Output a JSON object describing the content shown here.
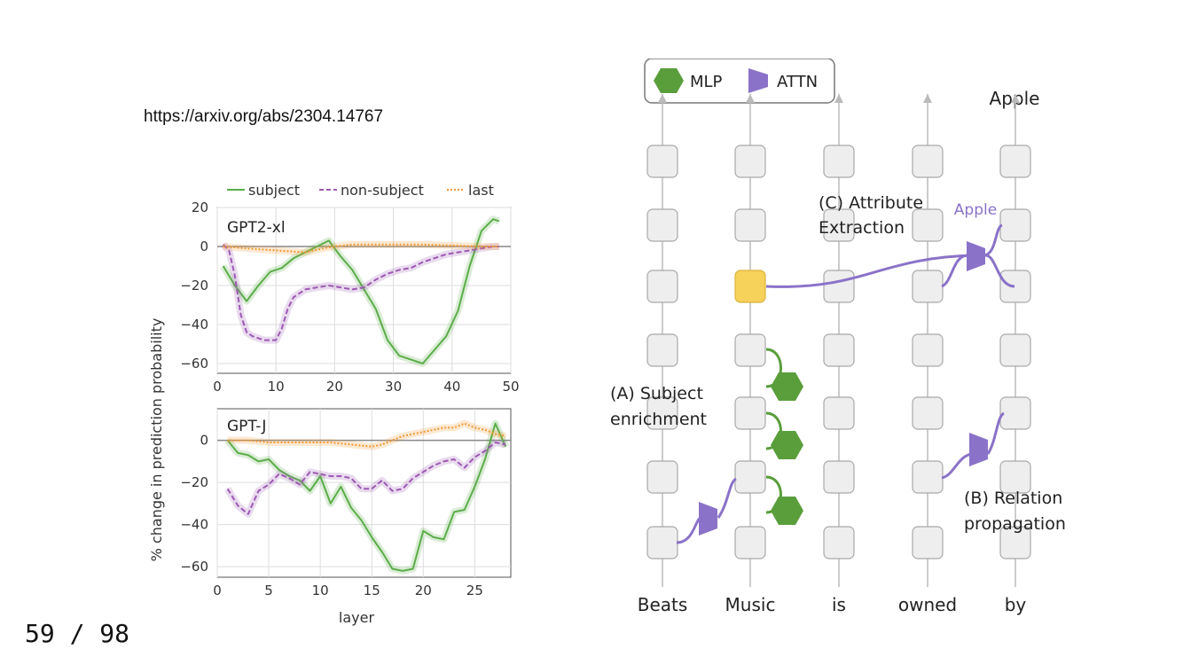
{
  "slide": {
    "link": "https://arxiv.org/abs/2304.14767",
    "page": "59 / 98"
  },
  "chart_data": [
    {
      "type": "line",
      "title": "GPT2-xl",
      "xlim": [
        0,
        50
      ],
      "ylim": [
        -65,
        20
      ],
      "xticks": [
        0,
        10,
        20,
        30,
        40,
        50
      ],
      "yticks": [
        20,
        0,
        -20,
        -40,
        -60
      ],
      "ylabel": "% change in prediction probability",
      "grid": true,
      "legend": "top",
      "series": [
        {
          "name": "subject",
          "color": "#5cad4a",
          "style": "solid",
          "x": [
            1,
            3,
            5,
            7,
            9,
            11,
            13,
            15,
            17,
            19,
            21,
            23,
            25,
            27,
            29,
            31,
            33,
            35,
            37,
            39,
            41,
            43,
            45,
            47,
            48
          ],
          "y": [
            -10,
            -20,
            -28,
            -20,
            -13,
            -11,
            -6,
            -3,
            0,
            3,
            -5,
            -12,
            -22,
            -32,
            -48,
            -56,
            -58,
            -60,
            -53,
            -46,
            -33,
            -10,
            8,
            14,
            13
          ]
        },
        {
          "name": "non-subject",
          "color": "#9d59b3",
          "style": "dashed",
          "x": [
            1,
            2,
            3,
            4,
            5,
            6,
            8,
            10,
            11,
            12,
            13,
            15,
            17,
            19,
            21,
            23,
            25,
            27,
            29,
            31,
            33,
            35,
            37,
            39,
            41,
            43,
            45,
            47,
            48
          ],
          "y": [
            1,
            -2,
            -15,
            -35,
            -44,
            -46,
            -48,
            -48,
            -42,
            -32,
            -26,
            -22,
            -21,
            -20,
            -21,
            -22,
            -21,
            -17,
            -14,
            -12,
            -11,
            -8,
            -6,
            -4,
            -3,
            -2,
            -1,
            0,
            0
          ]
        },
        {
          "name": "last",
          "color": "#f29935",
          "style": "dotted",
          "x": [
            1,
            5,
            10,
            15,
            18,
            20,
            23,
            26,
            30,
            35,
            40,
            45,
            48
          ],
          "y": [
            0,
            -1,
            -2,
            -3,
            -1,
            0,
            1,
            1,
            1,
            1,
            0.5,
            0,
            0
          ]
        }
      ]
    },
    {
      "type": "line",
      "title": "GPT-J",
      "xlabel": "layer",
      "xlim": [
        0,
        28.5
      ],
      "ylim": [
        -65,
        15
      ],
      "xticks": [
        0,
        5,
        10,
        15,
        20,
        25
      ],
      "yticks": [
        0,
        -20,
        -40,
        -60
      ],
      "grid": true,
      "series": [
        {
          "name": "subject",
          "color": "#5cad4a",
          "style": "solid",
          "x": [
            1,
            2,
            3,
            4,
            5,
            6,
            7,
            8,
            9,
            10,
            11,
            12,
            13,
            14,
            15,
            16,
            17,
            18,
            19,
            20,
            21,
            22,
            23,
            24,
            25,
            26,
            27,
            28
          ],
          "y": [
            0,
            -6,
            -7,
            -10,
            -9,
            -14,
            -17,
            -19,
            -24,
            -17,
            -30,
            -22,
            -32,
            -38,
            -46,
            -53,
            -61,
            -62,
            -61,
            -43,
            -46,
            -47,
            -34,
            -33,
            -22,
            -9,
            8,
            -3
          ]
        },
        {
          "name": "non-subject",
          "color": "#9d59b3",
          "style": "dashed",
          "x": [
            1,
            2,
            3,
            4,
            5,
            6,
            7,
            8,
            9,
            10,
            11,
            12,
            13,
            14,
            15,
            16,
            17,
            18,
            19,
            20,
            21,
            22,
            23,
            24,
            25,
            26,
            27,
            28
          ],
          "y": [
            -23,
            -31,
            -35,
            -24,
            -21,
            -16,
            -18,
            -21,
            -15,
            -16,
            -17,
            -17,
            -18,
            -23,
            -23,
            -19,
            -24,
            -23,
            -18,
            -15,
            -12,
            -10,
            -9,
            -13,
            -8,
            -5,
            -1,
            -2
          ]
        },
        {
          "name": "last",
          "color": "#f29935",
          "style": "dotted",
          "x": [
            1,
            3,
            5,
            7,
            9,
            11,
            13,
            15,
            16,
            18,
            19,
            20,
            21,
            22,
            23,
            24,
            25,
            26,
            27,
            28
          ],
          "y": [
            0,
            0,
            -1,
            -1,
            -1,
            -1,
            -2,
            -3,
            -2,
            2,
            3,
            4,
            5,
            6,
            6,
            8,
            6,
            5,
            3,
            2
          ]
        }
      ]
    }
  ],
  "diagram": {
    "legend": {
      "mlp": "MLP",
      "attn": "ATTN"
    },
    "output_label": "Apple",
    "apple_label": "Apple",
    "tokens": [
      "Beats",
      "Music",
      "is",
      "owned",
      "by"
    ],
    "labels": {
      "attr1": "(C) Attribute",
      "attr2": "Extraction",
      "subj1": "(A) Subject",
      "subj2": "enrichment",
      "rel1": "(B) Relation",
      "rel2": "propagation"
    },
    "colors": {
      "mlp": "#5a9e3c",
      "attn": "#8a72c8",
      "highlight": "#f7d25a",
      "block": "#eeeeee"
    }
  }
}
